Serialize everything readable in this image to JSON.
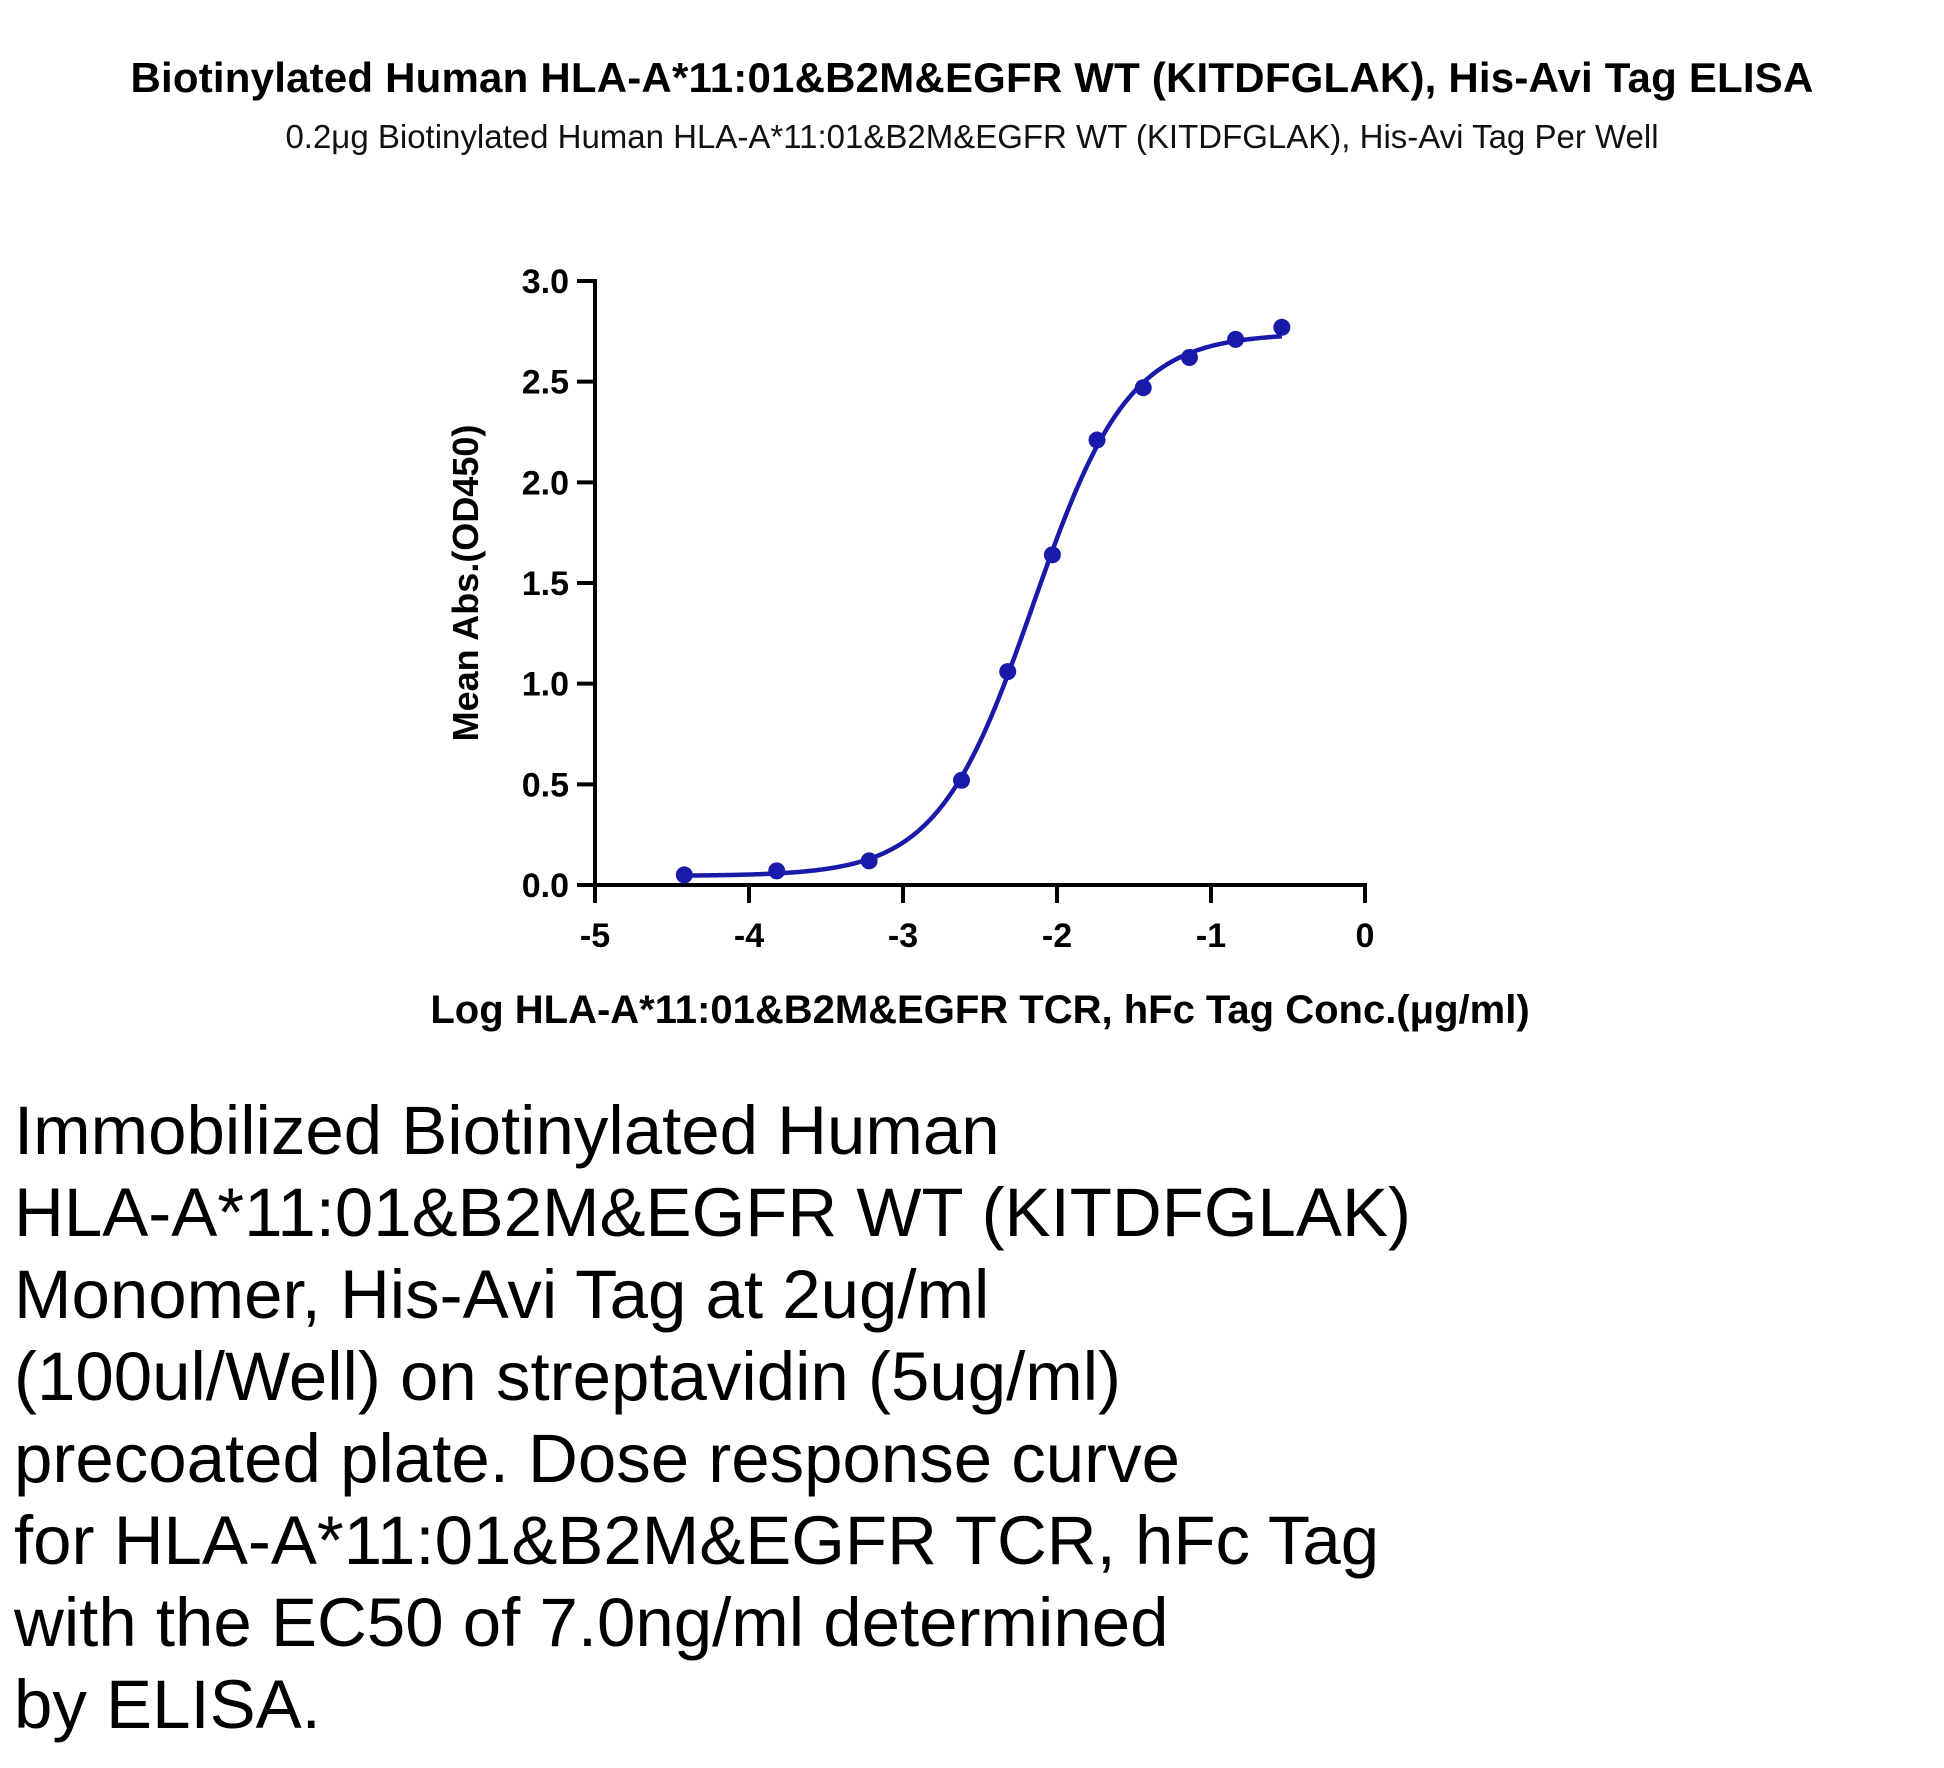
{
  "chart_data": {
    "type": "scatter",
    "title": "Biotinylated Human HLA-A*11:01&B2M&EGFR WT (KITDFGLAK), His-Avi Tag ELISA",
    "subtitle": "0.2μg Biotinylated Human HLA-A*11:01&B2M&EGFR WT (KITDFGLAK), His-Avi Tag Per Well",
    "xlabel": "Log HLA-A*11:01&B2M&EGFR TCR, hFc Tag Conc.(μg/ml)",
    "ylabel": "Mean Abs.(OD450)",
    "xlim": [
      -5,
      0
    ],
    "ylim": [
      0,
      3.0
    ],
    "x_ticks": [
      "-5",
      "-4",
      "-3",
      "-2",
      "-1",
      "0"
    ],
    "y_ticks": [
      "0.0",
      "0.5",
      "1.0",
      "1.5",
      "2.0",
      "2.5",
      "3.0"
    ],
    "grid": false,
    "color": "#1a1aaa",
    "series": [
      {
        "points": [
          {
            "x": -4.42,
            "y": 0.05
          },
          {
            "x": -3.82,
            "y": 0.07
          },
          {
            "x": -3.22,
            "y": 0.12
          },
          {
            "x": -2.62,
            "y": 0.52
          },
          {
            "x": -2.32,
            "y": 1.06
          },
          {
            "x": -2.03,
            "y": 1.64
          },
          {
            "x": -1.74,
            "y": 2.21
          },
          {
            "x": -1.44,
            "y": 2.47
          },
          {
            "x": -1.14,
            "y": 2.62
          },
          {
            "x": -0.84,
            "y": 2.71
          },
          {
            "x": -0.54,
            "y": 2.77
          }
        ],
        "fit": {
          "model": "4PL",
          "bottom": 0.045,
          "top": 2.74,
          "logEC50": -2.155,
          "hill": 1.4
        }
      }
    ]
  },
  "caption_lines": [
    "Immobilized Biotinylated Human",
    "HLA-A*11:01&B2M&EGFR WT (KITDFGLAK)",
    "Monomer, His-Avi Tag at 2ug/ml",
    "(100ul/Well) on streptavidin (5ug/ml)",
    "precoated plate. Dose response curve",
    "for HLA-A*11:01&B2M&EGFR TCR, hFc Tag",
    "with the EC50 of 7.0ng/ml determined",
    "by ELISA."
  ]
}
